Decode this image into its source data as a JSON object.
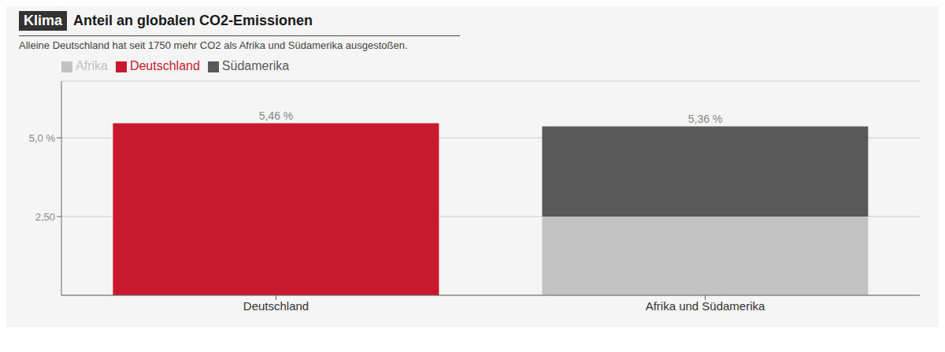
{
  "chart_data": {
    "type": "bar",
    "title_prefix": "Klima",
    "title": "Anteil an globalen CO2-Emissionen",
    "subtitle": "Alleine Deutschland hat seit 1750 mehr CO2 als Afrika und Südamerika ausgestoßen.",
    "categories": [
      "Deutschland",
      "Afrika und Südamerika"
    ],
    "series": [
      {
        "name": "Deutschland",
        "color": "#c8192e",
        "values": [
          5.46,
          null
        ]
      },
      {
        "name": "Afrika",
        "color": "#c2c2c2",
        "values": [
          null,
          2.5
        ]
      },
      {
        "name": "Südamerika",
        "color": "#595959",
        "values": [
          null,
          2.86
        ]
      }
    ],
    "stacked": true,
    "ylim": [
      0,
      6.8
    ],
    "yticks": [
      {
        "value": 2.5,
        "label": "2,50"
      },
      {
        "value": 5.0,
        "label": "5,0 %"
      }
    ],
    "grid": true,
    "legend": "top",
    "annotations": [
      {
        "text": "5,46 %",
        "category": "Deutschland",
        "value": 5.46
      },
      {
        "text": "5,36 %",
        "category": "Afrika und Südamerika",
        "value": 5.36
      }
    ]
  }
}
